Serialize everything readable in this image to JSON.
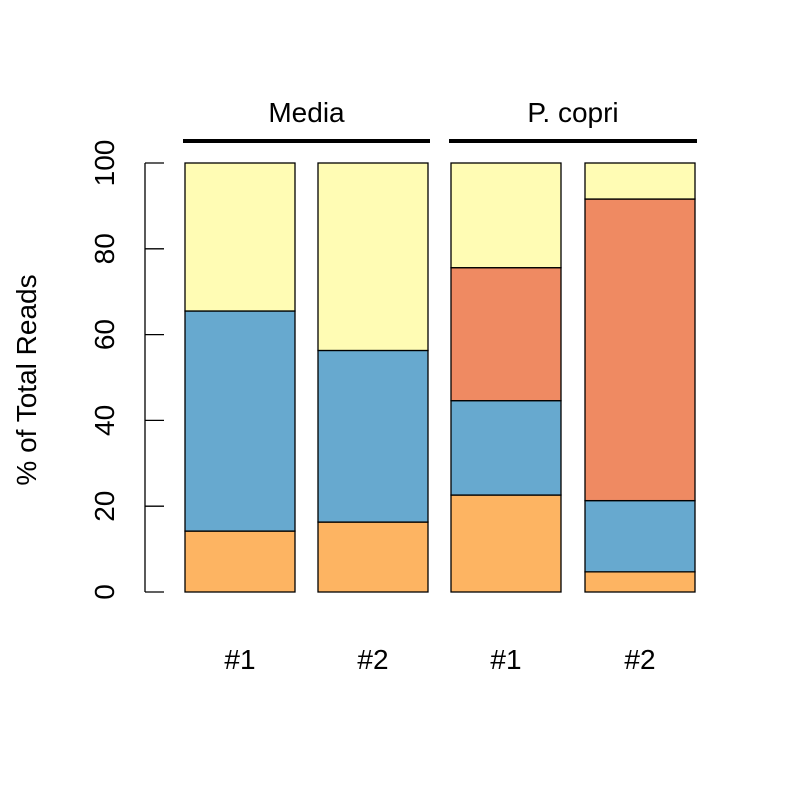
{
  "chart_data": {
    "type": "bar",
    "stacked": true,
    "groups": [
      {
        "label": "Media",
        "bars": [
          0,
          1
        ]
      },
      {
        "label": "P. copri",
        "bars": [
          2,
          3
        ]
      }
    ],
    "categories": [
      "#1",
      "#2",
      "#1",
      "#2"
    ],
    "series": [
      {
        "color": "#FDB462",
        "values": [
          14.2,
          16.3,
          22.6,
          4.7
        ]
      },
      {
        "color": "#67A9CF",
        "values": [
          51.3,
          40.0,
          22.0,
          16.6
        ]
      },
      {
        "color": "#EF8A62",
        "values": [
          0.0,
          0.0,
          31.0,
          70.3
        ]
      },
      {
        "color": "#FFFCB4",
        "values": [
          34.5,
          43.7,
          24.4,
          8.4
        ]
      }
    ],
    "ylabel": "% of Total Reads",
    "ylim": [
      0,
      100
    ],
    "yticks": [
      "0",
      "20",
      "40",
      "60",
      "80",
      "100"
    ],
    "grid": false,
    "legend": "none"
  }
}
